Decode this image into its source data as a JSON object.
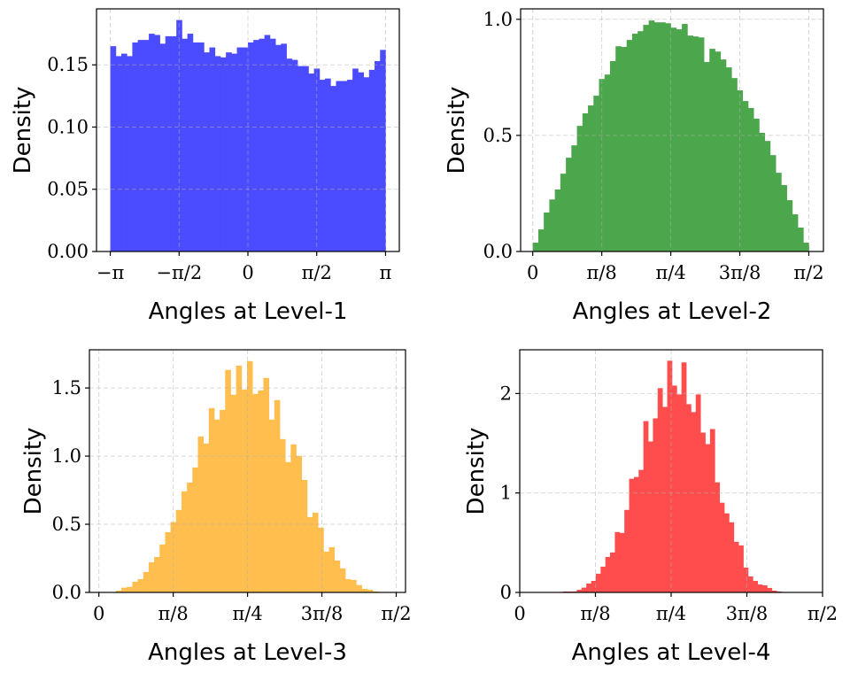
{
  "chart_data": [
    {
      "type": "bar",
      "subtype": "histogram",
      "xlabel": "Angles at Level-1",
      "ylabel": "Density",
      "color": "#4b4bff",
      "xlim": [
        -3.456,
        3.456
      ],
      "ylim": [
        0,
        0.195
      ],
      "grid": true,
      "x_ticks": [
        -3.1416,
        -1.5708,
        0,
        1.5708,
        3.1416
      ],
      "x_tick_labels": [
        "−π",
        "−π/2",
        "0",
        "π/2",
        "π"
      ],
      "y_ticks": [
        0,
        0.05,
        0.1,
        0.15
      ],
      "y_tick_labels": [
        "0.00",
        "0.05",
        "0.10",
        "0.15"
      ],
      "bin_range": [
        -3.1416,
        3.1416
      ],
      "values": [
        0.165,
        0.157,
        0.159,
        0.157,
        0.168,
        0.17,
        0.17,
        0.175,
        0.174,
        0.167,
        0.173,
        0.173,
        0.186,
        0.171,
        0.175,
        0.168,
        0.168,
        0.16,
        0.164,
        0.157,
        0.156,
        0.16,
        0.159,
        0.164,
        0.164,
        0.168,
        0.17,
        0.171,
        0.174,
        0.171,
        0.166,
        0.167,
        0.155,
        0.154,
        0.149,
        0.149,
        0.143,
        0.147,
        0.138,
        0.139,
        0.133,
        0.137,
        0.137,
        0.138,
        0.147,
        0.144,
        0.14,
        0.146,
        0.153,
        0.162
      ]
    },
    {
      "type": "bar",
      "subtype": "histogram",
      "xlabel": "Angles at Level-2",
      "ylabel": "Density",
      "color": "#4ca64c",
      "xlim": [
        -0.069,
        1.654
      ],
      "ylim": [
        0,
        1.045
      ],
      "grid": true,
      "x_ticks": [
        0,
        0.3927,
        0.7854,
        1.1781,
        1.5708
      ],
      "x_tick_labels": [
        "0",
        "π/8",
        "π/4",
        "3π/8",
        "π/2"
      ],
      "y_ticks": [
        0,
        0.5,
        1.0
      ],
      "y_tick_labels": [
        "0.0",
        "0.5",
        "1.0"
      ],
      "bin_range": [
        0,
        1.5708
      ],
      "values": [
        0.038,
        0.095,
        0.168,
        0.224,
        0.267,
        0.335,
        0.404,
        0.457,
        0.541,
        0.595,
        0.629,
        0.671,
        0.743,
        0.762,
        0.82,
        0.884,
        0.881,
        0.911,
        0.938,
        0.949,
        0.976,
        0.995,
        0.987,
        0.987,
        0.983,
        0.964,
        0.957,
        0.98,
        0.93,
        0.926,
        0.922,
        0.816,
        0.873,
        0.861,
        0.827,
        0.793,
        0.747,
        0.694,
        0.648,
        0.618,
        0.572,
        0.511,
        0.476,
        0.415,
        0.339,
        0.286,
        0.221,
        0.16,
        0.103,
        0.038
      ]
    },
    {
      "type": "bar",
      "subtype": "histogram",
      "xlabel": "Angles at Level-3",
      "ylabel": "Density",
      "color": "#ffbe4d",
      "xlim": [
        -0.05,
        1.62
      ],
      "ylim": [
        0,
        1.78
      ],
      "grid": true,
      "x_ticks": [
        0,
        0.3927,
        0.7854,
        1.1781,
        1.5708
      ],
      "x_tick_labels": [
        "0",
        "π/8",
        "π/4",
        "3π/8",
        "π/2"
      ],
      "y_ticks": [
        0,
        0.5,
        1.0,
        1.5
      ],
      "y_tick_labels": [
        "0.0",
        "0.5",
        "1.0",
        "1.5"
      ],
      "bin_range": [
        0.09,
        1.475
      ],
      "values": [
        0.013,
        0.035,
        0.041,
        0.078,
        0.098,
        0.15,
        0.221,
        0.26,
        0.351,
        0.442,
        0.516,
        0.605,
        0.741,
        0.806,
        0.917,
        1.144,
        1.092,
        1.352,
        1.268,
        1.339,
        1.632,
        1.45,
        1.664,
        1.489,
        1.697,
        1.456,
        1.482,
        1.573,
        1.268,
        1.411,
        1.125,
        0.956,
        1.086,
        1.001,
        0.826,
        0.553,
        0.585,
        0.475,
        0.299,
        0.332,
        0.234,
        0.176,
        0.098,
        0.091,
        0.054,
        0.026,
        0.02,
        0.007
      ]
    },
    {
      "type": "bar",
      "subtype": "histogram",
      "xlabel": "Angles at Level-4",
      "ylabel": "Density",
      "color": "#ff4d4d",
      "xlim": [
        0,
        1.5708
      ],
      "ylim": [
        0,
        2.44
      ],
      "grid": true,
      "x_ticks": [
        0,
        0.3927,
        0.7854,
        1.1781,
        1.5708
      ],
      "x_tick_labels": [
        "0",
        "π/8",
        "π/4",
        "3π/8",
        "π/2"
      ],
      "y_ticks": [
        0,
        1,
        2
      ],
      "y_tick_labels": [
        "0",
        "1",
        "2"
      ],
      "bin_range": [
        0.222,
        1.357
      ],
      "values": [
        0.009,
        0.009,
        0.009,
        0.027,
        0.048,
        0.089,
        0.116,
        0.188,
        0.259,
        0.357,
        0.402,
        0.607,
        0.598,
        0.83,
        1.143,
        1.161,
        1.232,
        1.723,
        1.518,
        1.75,
        2.054,
        1.866,
        2.33,
        2.08,
        1.991,
        2.313,
        1.893,
        1.813,
        1.991,
        1.607,
        1.491,
        1.643,
        1.107,
        0.902,
        0.795,
        0.705,
        0.509,
        0.473,
        0.25,
        0.161,
        0.116,
        0.08,
        0.071,
        0.045,
        0.018,
        0.009
      ]
    }
  ]
}
